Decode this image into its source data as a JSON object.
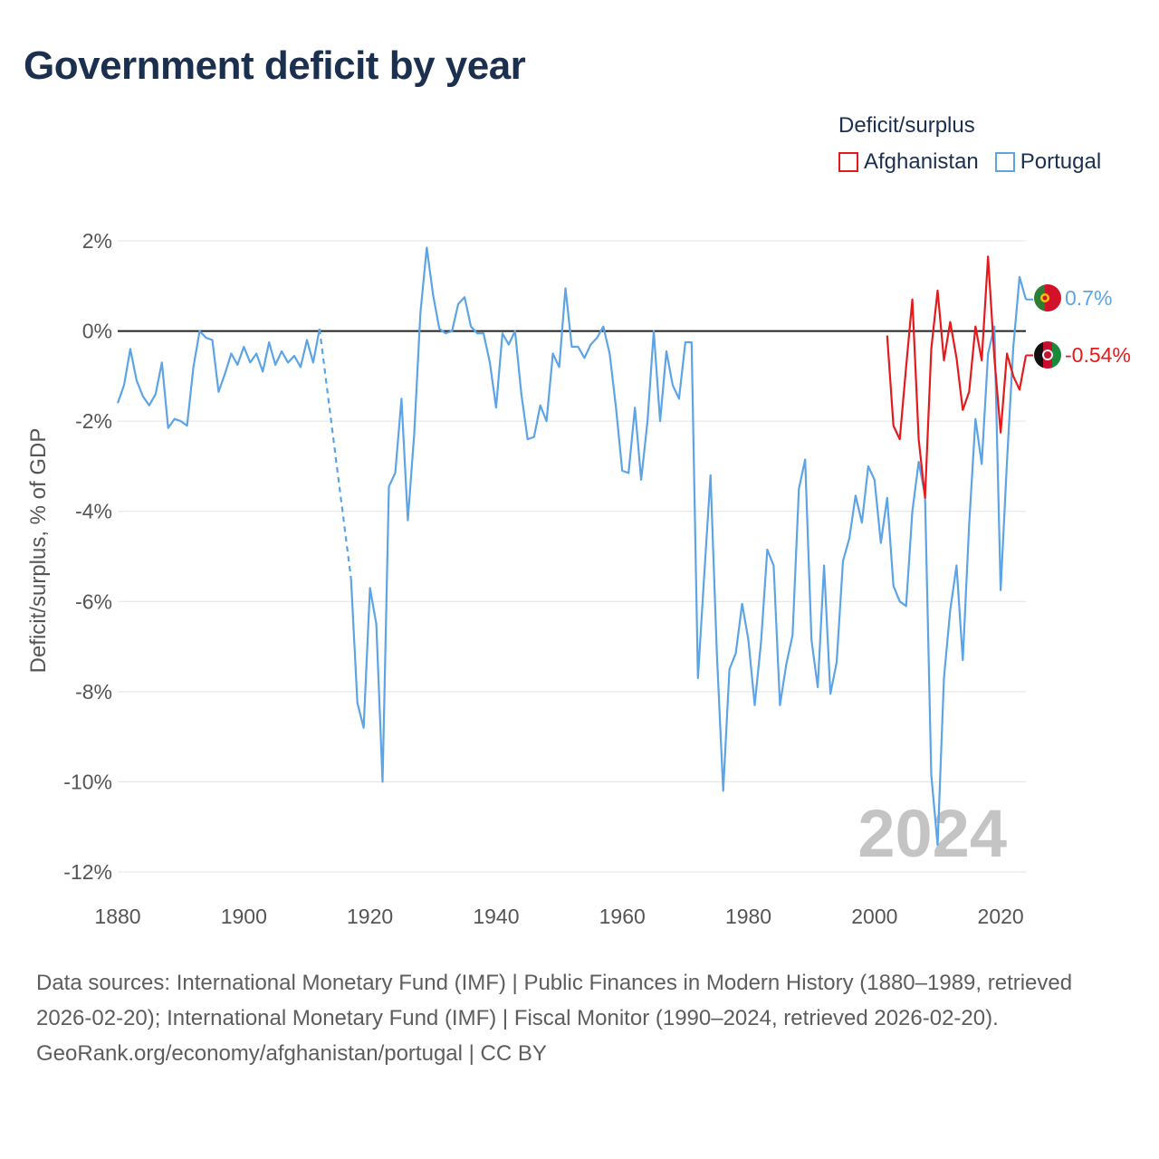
{
  "title": "Government deficit by year",
  "legend": {
    "title": "Deficit/surplus",
    "items": [
      {
        "label": "Afghanistan",
        "color": "#e41a1c"
      },
      {
        "label": "Portugal",
        "color": "#5ca4e6"
      }
    ]
  },
  "year_watermark": "2024",
  "footer": {
    "sources": "Data sources: International Monetary Fund (IMF) | Public Finances in Modern History (1880–1989, retrieved 2026-02-20); International Monetary Fund (IMF) | Fiscal Monitor (1990–2024, retrieved 2026-02-20).",
    "credit": "GeoRank.org/economy/afghanistan/portugal | CC BY"
  },
  "chart_data": {
    "type": "line",
    "title": "Government deficit by year",
    "xlabel": "",
    "ylabel": "Deficit/surplus, % of GDP",
    "xlim": [
      1880,
      2024
    ],
    "ylim": [
      -12,
      2
    ],
    "grid": true,
    "legend_position": "top-right",
    "x_ticks": [
      {
        "value": 1880,
        "label": "1880"
      },
      {
        "value": 1900,
        "label": "1900"
      },
      {
        "value": 1920,
        "label": "1920"
      },
      {
        "value": 1940,
        "label": "1940"
      },
      {
        "value": 1960,
        "label": "1960"
      },
      {
        "value": 1980,
        "label": "1980"
      },
      {
        "value": 2000,
        "label": "2000"
      },
      {
        "value": 2020,
        "label": "2020"
      }
    ],
    "y_ticks": [
      {
        "value": 2,
        "label": "2%"
      },
      {
        "value": 0,
        "label": "0%"
      },
      {
        "value": -2,
        "label": "-2%"
      },
      {
        "value": -4,
        "label": "-4%"
      },
      {
        "value": -6,
        "label": "-6%"
      },
      {
        "value": -8,
        "label": "-8%"
      },
      {
        "value": -10,
        "label": "-10%"
      },
      {
        "value": -12,
        "label": "-12%"
      }
    ],
    "series": [
      {
        "name": "Portugal",
        "color": "#5ca4e6",
        "end_label": "0.7%",
        "gap": [
          1912,
          1917
        ],
        "x": [
          1880,
          1881,
          1882,
          1883,
          1884,
          1885,
          1886,
          1887,
          1888,
          1889,
          1890,
          1891,
          1892,
          1893,
          1894,
          1895,
          1896,
          1897,
          1898,
          1899,
          1900,
          1901,
          1902,
          1903,
          1904,
          1905,
          1906,
          1907,
          1908,
          1909,
          1910,
          1911,
          1912,
          1917,
          1918,
          1919,
          1920,
          1921,
          1922,
          1923,
          1924,
          1925,
          1926,
          1927,
          1928,
          1929,
          1930,
          1931,
          1932,
          1933,
          1934,
          1935,
          1936,
          1937,
          1938,
          1939,
          1940,
          1941,
          1942,
          1943,
          1944,
          1945,
          1946,
          1947,
          1948,
          1949,
          1950,
          1951,
          1952,
          1953,
          1954,
          1955,
          1956,
          1957,
          1958,
          1959,
          1960,
          1961,
          1962,
          1963,
          1964,
          1965,
          1966,
          1967,
          1968,
          1969,
          1970,
          1971,
          1972,
          1973,
          1974,
          1975,
          1976,
          1977,
          1978,
          1979,
          1980,
          1981,
          1982,
          1983,
          1984,
          1985,
          1986,
          1987,
          1988,
          1989,
          1990,
          1991,
          1992,
          1993,
          1994,
          1995,
          1996,
          1997,
          1998,
          1999,
          2000,
          2001,
          2002,
          2003,
          2004,
          2005,
          2006,
          2007,
          2008,
          2009,
          2010,
          2011,
          2012,
          2013,
          2014,
          2015,
          2016,
          2017,
          2018,
          2019,
          2020,
          2021,
          2022,
          2023,
          2024
        ],
        "values": [
          -1.6,
          -1.2,
          -0.4,
          -1.1,
          -1.45,
          -1.65,
          -1.4,
          -0.7,
          -2.15,
          -1.95,
          -2.0,
          -2.1,
          -0.8,
          0.0,
          -0.15,
          -0.2,
          -1.35,
          -0.95,
          -0.5,
          -0.75,
          -0.35,
          -0.7,
          -0.5,
          -0.9,
          -0.25,
          -0.75,
          -0.45,
          -0.7,
          -0.55,
          -0.8,
          -0.2,
          -0.7,
          0.05,
          -5.5,
          -8.25,
          -8.8,
          -5.7,
          -6.5,
          -10.0,
          -3.45,
          -3.15,
          -1.5,
          -4.2,
          -2.3,
          0.4,
          1.85,
          0.8,
          0.05,
          -0.05,
          0.0,
          0.6,
          0.75,
          0.1,
          -0.05,
          -0.05,
          -0.7,
          -1.7,
          -0.05,
          -0.3,
          0.0,
          -1.4,
          -2.4,
          -2.35,
          -1.65,
          -2.0,
          -0.5,
          -0.8,
          0.95,
          -0.35,
          -0.35,
          -0.6,
          -0.3,
          -0.15,
          0.1,
          -0.5,
          -1.7,
          -3.1,
          -3.15,
          -1.7,
          -3.3,
          -2.0,
          0.0,
          -2.0,
          -0.45,
          -1.2,
          -1.5,
          -0.25,
          -0.25,
          -7.7,
          -5.4,
          -3.2,
          -7.15,
          -10.2,
          -7.5,
          -7.15,
          -6.05,
          -6.85,
          -8.3,
          -6.9,
          -4.85,
          -5.2,
          -8.3,
          -7.4,
          -6.75,
          -3.5,
          -2.85,
          -6.85,
          -7.9,
          -5.2,
          -8.05,
          -7.35,
          -5.1,
          -4.6,
          -3.65,
          -4.25,
          -3.0,
          -3.3,
          -4.7,
          -3.7,
          -5.65,
          -6.0,
          -6.1,
          -4.0,
          -2.9,
          -3.65,
          -9.85,
          -11.4,
          -7.7,
          -6.2,
          -5.2,
          -7.3,
          -4.3,
          -1.95,
          -2.95,
          -0.5,
          0.1,
          -5.75,
          -2.9,
          -0.35,
          1.2,
          0.7
        ]
      },
      {
        "name": "Afghanistan",
        "color": "#e41a1c",
        "end_label": "-0.54%",
        "gap": null,
        "x": [
          2002,
          2003,
          2004,
          2005,
          2006,
          2007,
          2008,
          2009,
          2010,
          2011,
          2012,
          2013,
          2014,
          2015,
          2016,
          2017,
          2018,
          2019,
          2020,
          2021,
          2022,
          2023,
          2024
        ],
        "values": [
          -0.1,
          -2.1,
          -2.4,
          -0.8,
          0.7,
          -2.4,
          -3.7,
          -0.4,
          0.9,
          -0.65,
          0.2,
          -0.6,
          -1.75,
          -1.35,
          0.1,
          -0.65,
          1.65,
          -0.6,
          -2.25,
          -0.5,
          -1.0,
          -1.3,
          -0.54
        ]
      }
    ]
  }
}
